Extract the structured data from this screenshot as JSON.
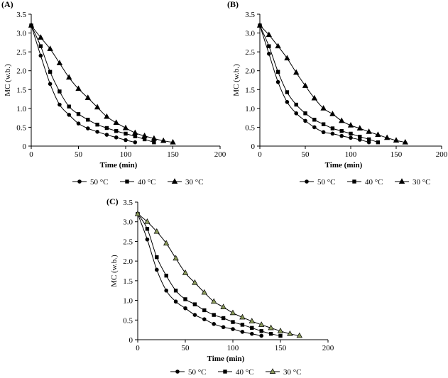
{
  "chart_data": [
    {
      "type": "line",
      "panel_label": "(A)",
      "xlabel": "Time (min)",
      "ylabel": "MC (w.b.)",
      "xlim": [
        0,
        200
      ],
      "ylim": [
        0,
        3.5
      ],
      "xticks": [
        "0",
        "50",
        "100",
        "150",
        "200"
      ],
      "yticks": [
        "0",
        "0.5",
        "1.0",
        "1.5",
        "2.0",
        "2.5",
        "3.0",
        "3.5"
      ],
      "legend_position": "bottom",
      "series": [
        {
          "name": "50 °C",
          "marker": "circle",
          "color": "#000000",
          "x": [
            0,
            10,
            20,
            30,
            40,
            50,
            60,
            70,
            80,
            90,
            100,
            110
          ],
          "y": [
            3.2,
            2.4,
            1.65,
            1.1,
            0.83,
            0.6,
            0.47,
            0.38,
            0.3,
            0.23,
            0.16,
            0.1
          ]
        },
        {
          "name": "40 °C",
          "marker": "square",
          "color": "#000000",
          "x": [
            0,
            10,
            20,
            30,
            40,
            50,
            60,
            70,
            80,
            90,
            100,
            110,
            120,
            130
          ],
          "y": [
            3.2,
            2.65,
            1.97,
            1.45,
            1.05,
            0.85,
            0.7,
            0.57,
            0.48,
            0.4,
            0.33,
            0.26,
            0.18,
            0.1
          ]
        },
        {
          "name": "30 °C",
          "marker": "triangle",
          "color": "#000000",
          "marker_fill": "#000000",
          "x": [
            0,
            10,
            20,
            30,
            40,
            50,
            60,
            70,
            80,
            90,
            100,
            110,
            120,
            130,
            140,
            150
          ],
          "y": [
            3.2,
            2.88,
            2.58,
            2.2,
            1.82,
            1.52,
            1.28,
            1.03,
            0.78,
            0.62,
            0.48,
            0.35,
            0.27,
            0.2,
            0.14,
            0.1
          ]
        }
      ]
    },
    {
      "type": "line",
      "panel_label": "(B)",
      "xlabel": "Time (min)",
      "ylabel": "MC (w.b.)",
      "xlim": [
        0,
        200
      ],
      "ylim": [
        0,
        3.5
      ],
      "xticks": [
        "0",
        "50",
        "100",
        "150",
        "200"
      ],
      "yticks": [
        "0",
        "0.5",
        "1.0",
        "1.5",
        "2.0",
        "2.5",
        "3.0",
        "3.5"
      ],
      "legend_position": "bottom",
      "series": [
        {
          "name": "50 °C",
          "marker": "circle",
          "color": "#000000",
          "x": [
            0,
            10,
            20,
            30,
            40,
            50,
            60,
            70,
            80,
            90,
            100,
            110,
            120
          ],
          "y": [
            3.2,
            2.45,
            1.7,
            1.17,
            0.87,
            0.67,
            0.5,
            0.37,
            0.33,
            0.27,
            0.22,
            0.17,
            0.1
          ]
        },
        {
          "name": "40 °C",
          "marker": "square",
          "color": "#000000",
          "x": [
            0,
            10,
            20,
            30,
            40,
            50,
            60,
            70,
            80,
            90,
            100,
            110,
            120,
            130
          ],
          "y": [
            3.2,
            2.65,
            1.97,
            1.43,
            1.1,
            0.87,
            0.7,
            0.58,
            0.47,
            0.4,
            0.33,
            0.25,
            0.18,
            0.1
          ]
        },
        {
          "name": "30 °C",
          "marker": "triangle",
          "color": "#000000",
          "marker_fill": "#000000",
          "x": [
            0,
            10,
            20,
            30,
            40,
            50,
            60,
            70,
            80,
            90,
            100,
            110,
            120,
            130,
            140,
            150,
            160
          ],
          "y": [
            3.2,
            2.95,
            2.65,
            2.33,
            1.95,
            1.6,
            1.27,
            1.0,
            0.85,
            0.67,
            0.55,
            0.47,
            0.38,
            0.3,
            0.22,
            0.15,
            0.1
          ]
        }
      ]
    },
    {
      "type": "line",
      "panel_label": "(C)",
      "xlabel": "Time (min)",
      "ylabel": "MC (w.b.)",
      "xlim": [
        0,
        200
      ],
      "ylim": [
        0,
        3.5
      ],
      "xticks": [
        "0",
        "50",
        "100",
        "150",
        "200"
      ],
      "yticks": [
        "0",
        "0.5",
        "1.0",
        "1.5",
        "2.0",
        "2.5",
        "3.0",
        "3.5"
      ],
      "legend_position": "bottom",
      "series": [
        {
          "name": "50 °C",
          "marker": "circle",
          "color": "#000000",
          "x": [
            0,
            10,
            20,
            30,
            40,
            50,
            60,
            70,
            80,
            90,
            100,
            110,
            120,
            130
          ],
          "y": [
            3.2,
            2.55,
            1.78,
            1.25,
            0.97,
            0.8,
            0.63,
            0.52,
            0.4,
            0.32,
            0.27,
            0.2,
            0.15,
            0.1
          ]
        },
        {
          "name": "40 °C",
          "marker": "square",
          "color": "#000000",
          "x": [
            0,
            10,
            20,
            30,
            40,
            50,
            60,
            70,
            80,
            90,
            100,
            110,
            120,
            130,
            140,
            150
          ],
          "y": [
            3.2,
            2.82,
            2.1,
            1.63,
            1.25,
            1.03,
            0.9,
            0.75,
            0.63,
            0.55,
            0.45,
            0.38,
            0.3,
            0.22,
            0.15,
            0.1
          ]
        },
        {
          "name": "30 °C",
          "marker": "triangle",
          "color": "#000000",
          "marker_fill": "#8a9a5b",
          "x": [
            0,
            10,
            20,
            30,
            40,
            50,
            60,
            70,
            80,
            90,
            100,
            110,
            120,
            130,
            140,
            150,
            160,
            170
          ],
          "y": [
            3.2,
            3.0,
            2.75,
            2.45,
            2.07,
            1.7,
            1.45,
            1.2,
            0.97,
            0.83,
            0.68,
            0.57,
            0.47,
            0.38,
            0.3,
            0.22,
            0.15,
            0.1
          ]
        }
      ]
    }
  ]
}
